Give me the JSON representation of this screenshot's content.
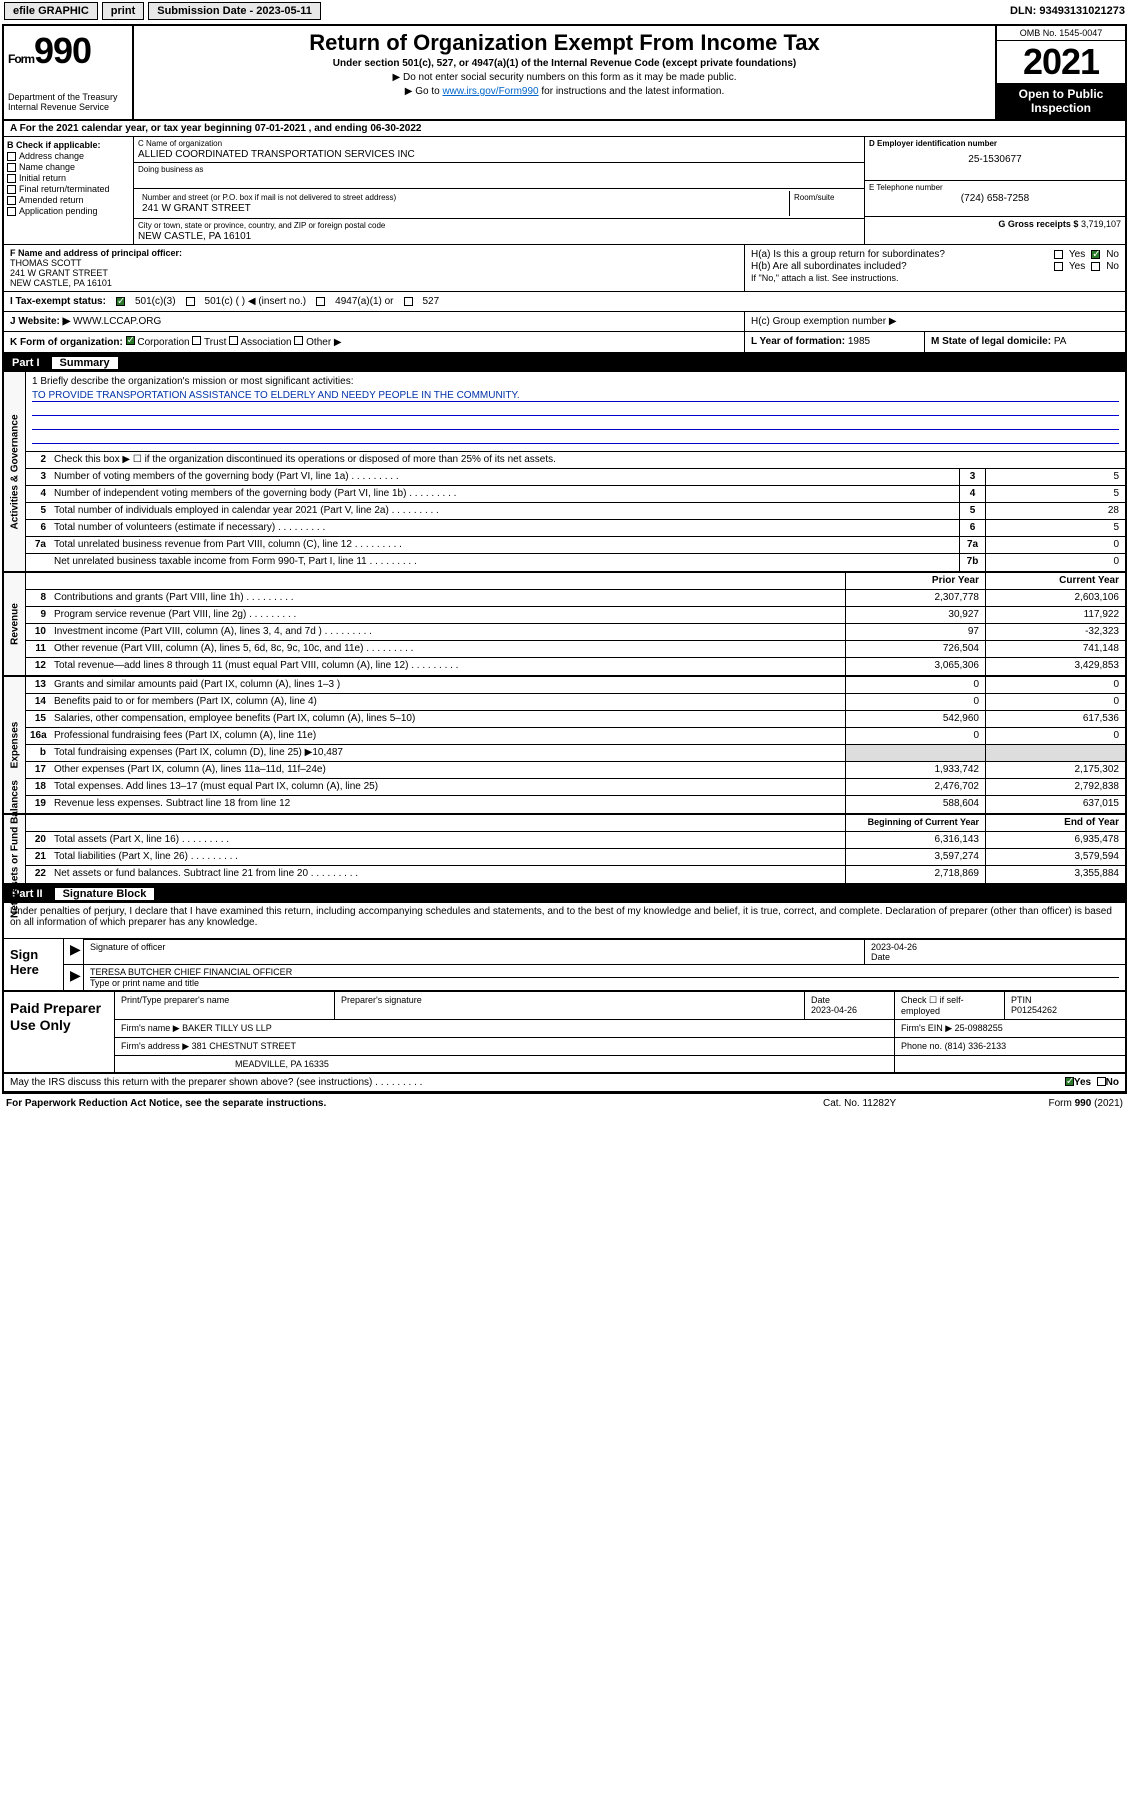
{
  "topbar": {
    "efile": "efile GRAPHIC",
    "print": "print",
    "sub_label": "Submission Date - 2023-05-11",
    "dln": "DLN: 93493131021273"
  },
  "header": {
    "form_prefix": "Form",
    "form_num": "990",
    "dept": "Department of the Treasury Internal Revenue Service",
    "title": "Return of Organization Exempt From Income Tax",
    "sub1": "Under section 501(c), 527, or 4947(a)(1) of the Internal Revenue Code (except private foundations)",
    "note1": "▶ Do not enter social security numbers on this form as it may be made public.",
    "note2_pre": "▶ Go to ",
    "note2_link": "www.irs.gov/Form990",
    "note2_post": " for instructions and the latest information.",
    "omb": "OMB No. 1545-0047",
    "year": "2021",
    "open": "Open to Public Inspection"
  },
  "line_a": "A For the 2021 calendar year, or tax year beginning 07-01-2021   , and ending 06-30-2022",
  "box_b": {
    "title": "B Check if applicable:",
    "opts": [
      "Address change",
      "Name change",
      "Initial return",
      "Final return/terminated",
      "Amended return",
      "Application pending"
    ]
  },
  "box_c": {
    "label": "C Name of organization",
    "name": "ALLIED COORDINATED TRANSPORTATION SERVICES INC",
    "dba_label": "Doing business as",
    "addr_label": "Number and street (or P.O. box if mail is not delivered to street address)",
    "addr": "241 W GRANT STREET",
    "room_label": "Room/suite",
    "city_label": "City or town, state or province, country, and ZIP or foreign postal code",
    "city": "NEW CASTLE, PA  16101"
  },
  "box_d": {
    "label": "D Employer identification number",
    "val": "25-1530677"
  },
  "box_e": {
    "label": "E Telephone number",
    "val": "(724) 658-7258"
  },
  "box_g": {
    "label": "G Gross receipts $",
    "val": "3,719,107"
  },
  "box_f": {
    "label": "F Name and address of principal officer:",
    "name": "THOMAS SCOTT",
    "addr": "241 W GRANT STREET",
    "city": "NEW CASTLE, PA  16101"
  },
  "box_h": {
    "ha": "H(a)  Is this a group return for subordinates?",
    "hb": "H(b)  Are all subordinates included?",
    "hb_note": "If \"No,\" attach a list. See instructions.",
    "hc": "H(c)  Group exemption number ▶"
  },
  "tax_status": {
    "label": "I   Tax-exempt status:",
    "o1": "501(c)(3)",
    "o2": "501(c) (   ) ◀ (insert no.)",
    "o3": "4947(a)(1) or",
    "o4": "527"
  },
  "website": {
    "label": "J   Website: ▶",
    "val": "WWW.LCCAP.ORG"
  },
  "form_org": {
    "label": "K Form of organization:",
    "o1": "Corporation",
    "o2": "Trust",
    "o3": "Association",
    "o4": "Other ▶"
  },
  "year_form": {
    "label": "L Year of formation:",
    "val": "1985"
  },
  "state": {
    "label": "M State of legal domicile:",
    "val": "PA"
  },
  "part1": {
    "num": "Part I",
    "title": "Summary"
  },
  "mission": {
    "label": "1   Briefly describe the organization's mission or most significant activities:",
    "text": "TO PROVIDE TRANSPORTATION ASSISTANCE TO ELDERLY AND NEEDY PEOPLE IN THE COMMUNITY."
  },
  "gov": {
    "l2": "Check this box ▶ ☐  if the organization discontinued its operations or disposed of more than 25% of its net assets.",
    "rows": [
      {
        "n": "3",
        "d": "Number of voting members of the governing body (Part VI, line 1a)",
        "b": "3",
        "v": "5"
      },
      {
        "n": "4",
        "d": "Number of independent voting members of the governing body (Part VI, line 1b)",
        "b": "4",
        "v": "5"
      },
      {
        "n": "5",
        "d": "Total number of individuals employed in calendar year 2021 (Part V, line 2a)",
        "b": "5",
        "v": "28"
      },
      {
        "n": "6",
        "d": "Total number of volunteers (estimate if necessary)",
        "b": "6",
        "v": "5"
      },
      {
        "n": "7a",
        "d": "Total unrelated business revenue from Part VIII, column (C), line 12",
        "b": "7a",
        "v": "0"
      },
      {
        "n": "",
        "d": "Net unrelated business taxable income from Form 990-T, Part I, line 11",
        "b": "7b",
        "v": "0"
      }
    ]
  },
  "col_hdr": {
    "prior": "Prior Year",
    "curr": "Current Year"
  },
  "revenue": [
    {
      "n": "8",
      "d": "Contributions and grants (Part VIII, line 1h)",
      "p": "2,307,778",
      "c": "2,603,106"
    },
    {
      "n": "9",
      "d": "Program service revenue (Part VIII, line 2g)",
      "p": "30,927",
      "c": "117,922"
    },
    {
      "n": "10",
      "d": "Investment income (Part VIII, column (A), lines 3, 4, and 7d )",
      "p": "97",
      "c": "-32,323"
    },
    {
      "n": "11",
      "d": "Other revenue (Part VIII, column (A), lines 5, 6d, 8c, 9c, 10c, and 11e)",
      "p": "726,504",
      "c": "741,148"
    },
    {
      "n": "12",
      "d": "Total revenue—add lines 8 through 11 (must equal Part VIII, column (A), line 12)",
      "p": "3,065,306",
      "c": "3,429,853"
    }
  ],
  "expenses": [
    {
      "n": "13",
      "d": "Grants and similar amounts paid (Part IX, column (A), lines 1–3 )",
      "p": "0",
      "c": "0"
    },
    {
      "n": "14",
      "d": "Benefits paid to or for members (Part IX, column (A), line 4)",
      "p": "0",
      "c": "0"
    },
    {
      "n": "15",
      "d": "Salaries, other compensation, employee benefits (Part IX, column (A), lines 5–10)",
      "p": "542,960",
      "c": "617,536"
    },
    {
      "n": "16a",
      "d": "Professional fundraising fees (Part IX, column (A), line 11e)",
      "p": "0",
      "c": "0"
    },
    {
      "n": "b",
      "d": "Total fundraising expenses (Part IX, column (D), line 25) ▶10,487",
      "p": "",
      "c": "",
      "shaded": true
    },
    {
      "n": "17",
      "d": "Other expenses (Part IX, column (A), lines 11a–11d, 11f–24e)",
      "p": "1,933,742",
      "c": "2,175,302"
    },
    {
      "n": "18",
      "d": "Total expenses. Add lines 13–17 (must equal Part IX, column (A), line 25)",
      "p": "2,476,702",
      "c": "2,792,838"
    },
    {
      "n": "19",
      "d": "Revenue less expenses. Subtract line 18 from line 12",
      "p": "588,604",
      "c": "637,015"
    }
  ],
  "net_hdr": {
    "beg": "Beginning of Current Year",
    "end": "End of Year"
  },
  "net": [
    {
      "n": "20",
      "d": "Total assets (Part X, line 16)",
      "p": "6,316,143",
      "c": "6,935,478"
    },
    {
      "n": "21",
      "d": "Total liabilities (Part X, line 26)",
      "p": "3,597,274",
      "c": "3,579,594"
    },
    {
      "n": "22",
      "d": "Net assets or fund balances. Subtract line 21 from line 20",
      "p": "2,718,869",
      "c": "3,355,884"
    }
  ],
  "part2": {
    "num": "Part II",
    "title": "Signature Block"
  },
  "sig_decl": "Under penalties of perjury, I declare that I have examined this return, including accompanying schedules and statements, and to the best of my knowledge and belief, it is true, correct, and complete. Declaration of preparer (other than officer) is based on all information of which preparer has any knowledge.",
  "sign": {
    "here": "Sign Here",
    "sig_label": "Signature of officer",
    "date_label": "Date",
    "date_val": "2023-04-26",
    "name": "TERESA BUTCHER  CHIEF FINANCIAL OFFICER",
    "name_label": "Type or print name and title"
  },
  "paid": {
    "title": "Paid Preparer Use Only",
    "h1": "Print/Type preparer's name",
    "h2": "Preparer's signature",
    "h3": "Date",
    "h3v": "2023-04-26",
    "h4": "Check ☐ if self-employed",
    "h5": "PTIN",
    "h5v": "P01254262",
    "firm_label": "Firm's name    ▶",
    "firm": "BAKER TILLY US LLP",
    "ein_label": "Firm's EIN ▶",
    "ein": "25-0988255",
    "addr_label": "Firm's address ▶",
    "addr": "381 CHESTNUT STREET",
    "addr2": "MEADVILLE, PA  16335",
    "phone_label": "Phone no.",
    "phone": "(814) 336-2133"
  },
  "discuss": "May the IRS discuss this return with the preparer shown above? (see instructions)",
  "footer": {
    "left": "For Paperwork Reduction Act Notice, see the separate instructions.",
    "mid": "Cat. No. 11282Y",
    "right": "Form 990 (2021)"
  },
  "yes": "Yes",
  "no": "No"
}
